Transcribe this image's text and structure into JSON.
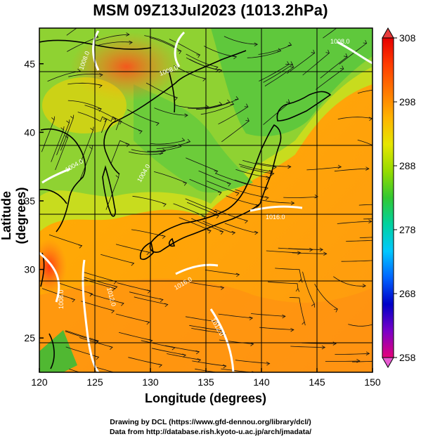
{
  "title": "MSM 09Z13Jul2023 (1013.2hPa)",
  "axes": {
    "xlabel": "Longitude (degrees)",
    "ylabel": "Latitude  (degrees)",
    "x_range": [
      120,
      150
    ],
    "y_range": [
      22.5,
      47.6
    ],
    "x_ticks": [
      "120",
      "125",
      "130",
      "135",
      "140",
      "145",
      "150"
    ],
    "y_ticks": [
      "25",
      "30",
      "35",
      "40",
      "45"
    ]
  },
  "colorbar": {
    "range": [
      258,
      308
    ],
    "ticks": [
      "308",
      "298",
      "288",
      "278",
      "268",
      "258"
    ],
    "colors": [
      "#e6007a",
      "#7a00c8",
      "#0000c8",
      "#0064ff",
      "#00c8ff",
      "#00d2a0",
      "#32c832",
      "#96dc00",
      "#e6e600",
      "#ffb400",
      "#ff7800",
      "#ff3c00",
      "#e60000"
    ]
  },
  "contour_labels": [
    "1008.0",
    "1008.0",
    "1004.0",
    "1008.0",
    "1012.0",
    "1016.0",
    "1016.0",
    "1012.0",
    "1004.0",
    "1008.0"
  ],
  "credits": {
    "line1": "Drawing by DCL (https://www.gfd-dennou.org/library/dcl/)",
    "line2": "Data from http://database.rish.kyoto-u.ac.jp/arch/jmadata/"
  }
}
